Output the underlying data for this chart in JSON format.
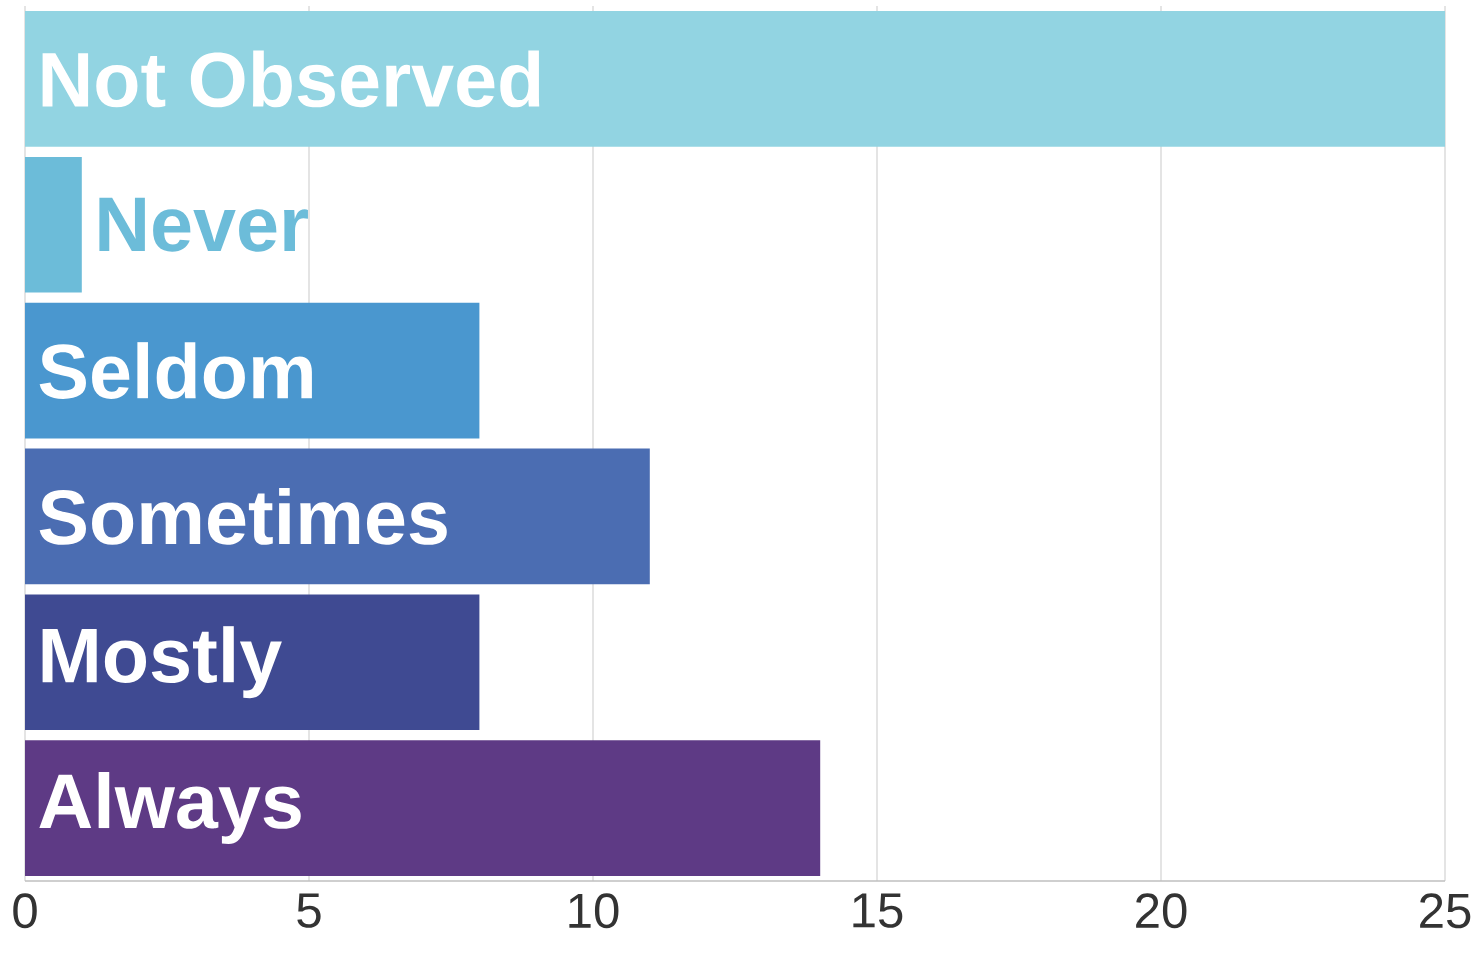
{
  "chart_data": {
    "type": "bar",
    "orientation": "horizontal",
    "categories": [
      "Not Observed",
      "Never",
      "Seldom",
      "Sometimes",
      "Mostly",
      "Always"
    ],
    "values": [
      25,
      1,
      8,
      11,
      8,
      14
    ],
    "colors": [
      "#92d4e2",
      "#6cbcd9",
      "#4a97cf",
      "#4b6db2",
      "#3f4a92",
      "#5e3a85"
    ],
    "xlim": [
      0,
      25
    ],
    "xticks": [
      0,
      5,
      10,
      15,
      20,
      25
    ],
    "grid": "x"
  }
}
